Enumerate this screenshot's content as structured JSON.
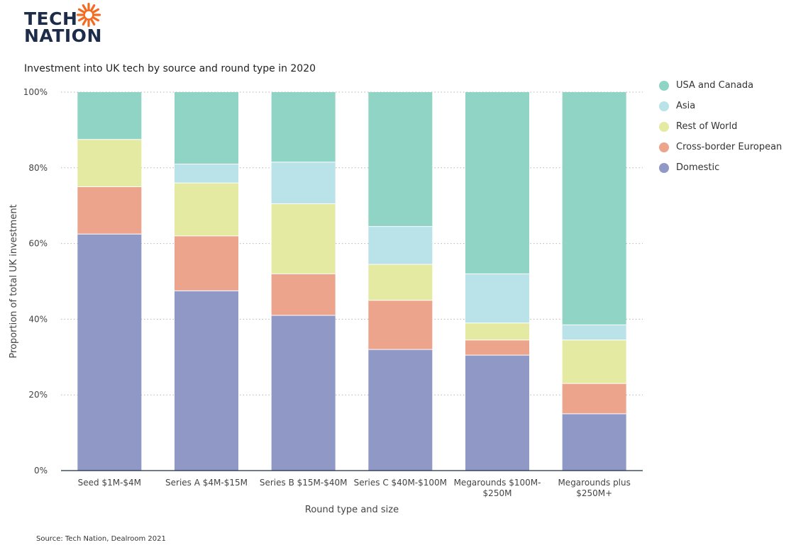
{
  "brand": {
    "line1": "TECH",
    "line2": "NATION",
    "text_color": "#1d2c48",
    "sun_color": "#f26b21",
    "icon": "sun-icon"
  },
  "source_note": "Source: Tech Nation, Dealroom 2021",
  "chart_data": {
    "type": "bar",
    "stacked": true,
    "title": "Investment into UK tech by source and round type in 2020",
    "xlabel": "Round type and size",
    "ylabel": "Proportion of total UK investment",
    "ylim": [
      0,
      100
    ],
    "yticks": [
      "0%",
      "20%",
      "40%",
      "60%",
      "80%",
      "100%"
    ],
    "grid": "horizontal dotted",
    "legend_position": "right",
    "categories": [
      [
        "Seed $1M-$4M"
      ],
      [
        "Series A $4M-$15M"
      ],
      [
        "Series B $15M-$40M"
      ],
      [
        "Series C $40M-$100M"
      ],
      [
        "Megarounds $100M-",
        "$250M"
      ],
      [
        "Megarounds plus",
        "$250M+"
      ]
    ],
    "series": [
      {
        "name": "Domestic",
        "color": "#9098c6",
        "values": [
          62.5,
          47.5,
          41,
          32,
          30.5,
          15
        ]
      },
      {
        "name": "Cross-border European",
        "color": "#eca58c",
        "values": [
          12.5,
          14.5,
          11,
          13,
          4,
          8
        ]
      },
      {
        "name": "Rest of World",
        "color": "#e5eaa2",
        "values": [
          12.5,
          14,
          18.5,
          9.5,
          4.5,
          11.5
        ]
      },
      {
        "name": "Asia",
        "color": "#b9e2e9",
        "values": [
          0,
          5,
          11,
          10,
          13,
          4
        ]
      },
      {
        "name": "USA and Canada",
        "color": "#8fd4c4",
        "values": [
          12.5,
          19,
          18.5,
          35.5,
          48,
          61.5
        ]
      }
    ],
    "legend_order": [
      "USA and Canada",
      "Asia",
      "Rest of World",
      "Cross-border European",
      "Domestic"
    ]
  }
}
